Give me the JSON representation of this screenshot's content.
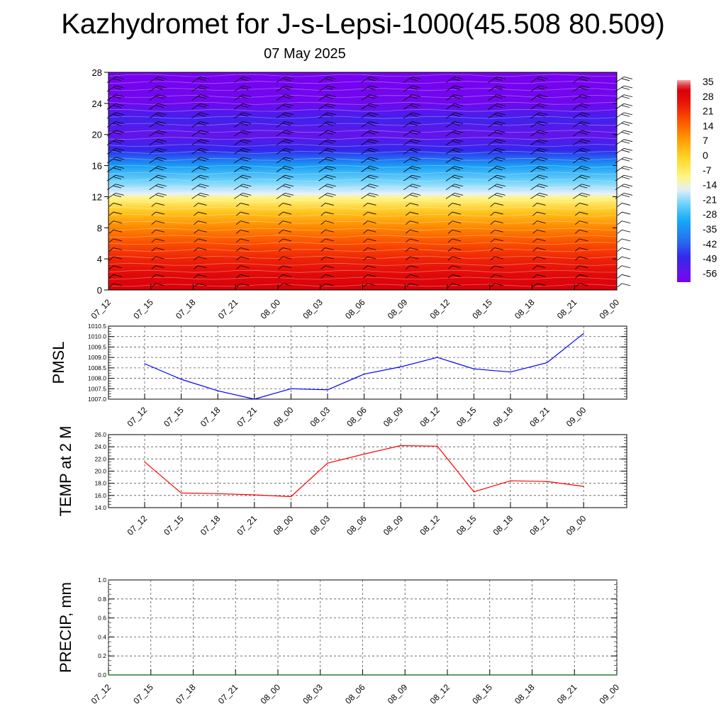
{
  "title": "Kazhydromet for J-s-Lepsi-1000(45.508 80.509)",
  "subtitle": "07 May 2025",
  "chart_data": [
    {
      "type": "heatmap",
      "name": "temperature-profile",
      "x_tick_labels": [
        "07_12",
        "07_15",
        "07_18",
        "07_21",
        "08_00",
        "08_03",
        "08_06",
        "08_09",
        "08_12",
        "08_15",
        "08_18",
        "08_21",
        "09_00"
      ],
      "y_ticks": [
        0,
        4,
        8,
        12,
        16,
        20,
        24,
        28
      ],
      "ylim": [
        0,
        28
      ],
      "colorbar": {
        "labels": [
          "35",
          "28",
          "21",
          "14",
          "7",
          "0",
          "-7",
          "-14",
          "-21",
          "-28",
          "-35",
          "-42",
          "-49",
          "-56"
        ],
        "range": [
          -60,
          38
        ]
      },
      "profile": [
        {
          "level": 0,
          "value": 34
        },
        {
          "level": 2,
          "value": 30
        },
        {
          "level": 4,
          "value": 25
        },
        {
          "level": 6,
          "value": 19
        },
        {
          "level": 8,
          "value": 12
        },
        {
          "level": 10,
          "value": 3
        },
        {
          "level": 11.8,
          "value": -9
        },
        {
          "level": 12.4,
          "value": -15
        },
        {
          "level": 14,
          "value": -22
        },
        {
          "level": 16,
          "value": -32
        },
        {
          "level": 18,
          "value": -48
        },
        {
          "level": 20,
          "value": -55
        },
        {
          "level": 22,
          "value": -50
        },
        {
          "level": 24,
          "value": -58
        },
        {
          "level": 28,
          "value": -60
        }
      ],
      "wind_barbs": true
    },
    {
      "type": "line",
      "name": "pmsl",
      "ylabel": "PMSL",
      "x": [
        "07_12",
        "07_15",
        "07_18",
        "07_21",
        "08_00",
        "08_03",
        "08_06",
        "08_09",
        "08_12",
        "08_15",
        "08_18",
        "08_21",
        "09_00"
      ],
      "values": [
        1008.7,
        1007.95,
        1007.4,
        1007.0,
        1007.5,
        1007.45,
        1008.2,
        1008.55,
        1009.0,
        1008.45,
        1008.3,
        1008.75,
        1010.15
      ],
      "ylim": [
        1007.0,
        1010.5
      ],
      "y_ticks": [
        "1007.0",
        "1007.5",
        "1008.0",
        "1008.5",
        "1009.0",
        "1009.5",
        "1010.0",
        "1010.5"
      ],
      "color": "#0000ff",
      "grid": true
    },
    {
      "type": "line",
      "name": "temp2m",
      "ylabel": "TEMP at 2 M",
      "x": [
        "07_12",
        "07_15",
        "07_18",
        "07_21",
        "08_00",
        "08_03",
        "08_06",
        "08_09",
        "08_12",
        "08_15",
        "08_18",
        "08_21",
        "09_00"
      ],
      "values": [
        21.5,
        16.4,
        16.3,
        16.1,
        15.8,
        21.3,
        22.8,
        24.2,
        24.1,
        16.6,
        18.4,
        18.3,
        17.5
      ],
      "ylim": [
        14.0,
        26.0
      ],
      "y_ticks": [
        "14.0",
        "16.0",
        "18.0",
        "20.0",
        "22.0",
        "24.0",
        "26.0"
      ],
      "color": "#ff0000",
      "grid": true
    },
    {
      "type": "line",
      "name": "precip",
      "ylabel": "PRECIP, mm",
      "x": [
        "07_12",
        "07_15",
        "07_18",
        "07_21",
        "08_00",
        "08_03",
        "08_06",
        "08_09",
        "08_12",
        "08_15",
        "08_18",
        "08_21",
        "09_00"
      ],
      "values": [
        0,
        0,
        0,
        0,
        0,
        0,
        0,
        0,
        0,
        0,
        0,
        0,
        0
      ],
      "ylim": [
        0.0,
        1.0
      ],
      "y_ticks": [
        "0.0",
        "0.2",
        "0.4",
        "0.6",
        "0.8",
        "1.0"
      ],
      "color": "#006400",
      "grid": true
    }
  ]
}
